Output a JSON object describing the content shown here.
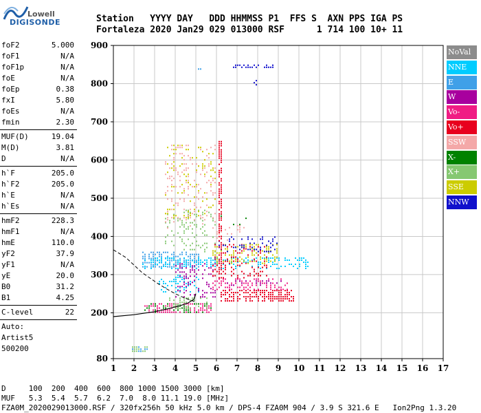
{
  "logo": {
    "line1": "Lowell",
    "line2": "DIGISONDE"
  },
  "header": {
    "line1": "Station   YYYY DAY   DDD HHMMSS P1  FFS S  AXN PPS IGA PS",
    "line2": "Fortaleza 2020 Jan29 029 013000 RSF      1 714 100 10+ 11"
  },
  "params": {
    "group1": [
      {
        "k": "foF2",
        "v": "5.000"
      },
      {
        "k": "foF1",
        "v": "N/A"
      },
      {
        "k": "foF1p",
        "v": "N/A"
      },
      {
        "k": "foE",
        "v": "N/A"
      },
      {
        "k": "foEp",
        "v": "0.38"
      },
      {
        "k": "fxI",
        "v": "5.80"
      },
      {
        "k": "foEs",
        "v": "N/A"
      },
      {
        "k": "fmin",
        "v": "2.30"
      }
    ],
    "group2": [
      {
        "k": "MUF(D)",
        "v": "19.04"
      },
      {
        "k": "M(D)",
        "v": "3.81"
      },
      {
        "k": "D",
        "v": "N/A"
      }
    ],
    "group3": [
      {
        "k": "h`F",
        "v": "205.0"
      },
      {
        "k": "h`F2",
        "v": "205.0"
      },
      {
        "k": "h`E",
        "v": "N/A"
      },
      {
        "k": "h`Es",
        "v": "N/A"
      }
    ],
    "group4": [
      {
        "k": "hmF2",
        "v": "228.3"
      },
      {
        "k": "hmF1",
        "v": "N/A"
      },
      {
        "k": "hmE",
        "v": "110.0"
      },
      {
        "k": "yF2",
        "v": "37.9"
      },
      {
        "k": "yF1",
        "v": "N/A"
      },
      {
        "k": "yE",
        "v": "20.0"
      },
      {
        "k": "B0",
        "v": "31.2"
      },
      {
        "k": "B1",
        "v": "4.25"
      }
    ],
    "group5": [
      {
        "k": "C-level",
        "v": "22"
      }
    ],
    "auto": [
      "Auto:",
      "Artist5",
      "500200"
    ]
  },
  "legend": [
    {
      "label": "NoVal",
      "color": "#8c8c8c"
    },
    {
      "label": "NNE",
      "color": "#00ccff"
    },
    {
      "label": "E",
      "color": "#3fa0e8"
    },
    {
      "label": "W",
      "color": "#a8009e"
    },
    {
      "label": "Vo-",
      "color": "#f01c84"
    },
    {
      "label": "Vo+",
      "color": "#e8001e"
    },
    {
      "label": "SSW",
      "color": "#f4a8a8"
    },
    {
      "label": "X-",
      "color": "#008200"
    },
    {
      "label": "X+",
      "color": "#86c872"
    },
    {
      "label": "SSE",
      "color": "#cccc00"
    },
    {
      "label": "NNW",
      "color": "#1010cc"
    }
  ],
  "footer": {
    "line1": "D     100  200  400  600  800 1000 1500 3000 [km]",
    "line2": "MUF   5.3  5.4  5.7  6.2  7.0  8.0 11.1 19.0 [MHz]",
    "line3": "FZA0M_2020029013000.RSF / 320fx256h 50 kHz 5.0 km / DPS-4 FZA0M 904 / 3.9 S 321.6 E   Ion2Png 1.3.20"
  },
  "chart_data": {
    "type": "scatter",
    "xlim": [
      1,
      17
    ],
    "ylim": [
      80,
      900
    ],
    "x_ticks": [
      1,
      2,
      3,
      4,
      5,
      6,
      7,
      8,
      9,
      10,
      11,
      12,
      13,
      14,
      15,
      16,
      17
    ],
    "y_ticks": [
      80,
      200,
      300,
      400,
      500,
      600,
      700,
      800,
      900
    ],
    "grid": true,
    "legend_position": "right",
    "xlabel": "",
    "ylabel": "",
    "clusters": [
      {
        "x": [
          2.5,
          5.8
        ],
        "y": [
          200,
          225
        ],
        "color": "#f01c84",
        "density": 0.85
      },
      {
        "x": [
          2.5,
          5.8
        ],
        "y": [
          200,
          225
        ],
        "color": "#008200",
        "density": 0.4
      },
      {
        "x": [
          3.6,
          5.6
        ],
        "y": [
          210,
          240
        ],
        "color": "#86c872",
        "density": 0.5
      },
      {
        "x": [
          2.4,
          5.2
        ],
        "y": [
          320,
          360
        ],
        "color": "#3fa0e8",
        "density": 0.8
      },
      {
        "x": [
          2.4,
          10.5
        ],
        "y": [
          315,
          345
        ],
        "color": "#00ccff",
        "density": 0.5
      },
      {
        "x": [
          3.2,
          5.2
        ],
        "y": [
          255,
          300
        ],
        "color": "#00ccff",
        "density": 0.35
      },
      {
        "x": [
          3.5,
          6
        ],
        "y": [
          360,
          470
        ],
        "color": "#86c872",
        "density": 0.25
      },
      {
        "x": [
          3.5,
          6
        ],
        "y": [
          420,
          640
        ],
        "color": "#f4a8a8",
        "density": 0.2
      },
      {
        "x": [
          3.5,
          6
        ],
        "y": [
          450,
          640
        ],
        "color": "#cccc00",
        "density": 0.15
      },
      {
        "x": [
          4,
          6
        ],
        "y": [
          240,
          330
        ],
        "color": "#a8009e",
        "density": 0.3
      },
      {
        "x": [
          6.2,
          9.8
        ],
        "y": [
          230,
          260
        ],
        "color": "#e8001e",
        "density": 0.85
      },
      {
        "x": [
          5.8,
          9.5
        ],
        "y": [
          260,
          290
        ],
        "color": "#f01c84",
        "density": 0.55
      },
      {
        "x": [
          5.8,
          8.5
        ],
        "y": [
          290,
          380
        ],
        "color": "#e8001e",
        "density": 0.35
      },
      {
        "x": [
          5.8,
          9
        ],
        "y": [
          330,
          380
        ],
        "color": "#cccc00",
        "density": 0.35
      },
      {
        "x": [
          6,
          9
        ],
        "y": [
          360,
          400
        ],
        "color": "#1010cc",
        "density": 0.25
      },
      {
        "x": [
          6.5,
          9.2
        ],
        "y": [
          270,
          285
        ],
        "color": "#a8009e",
        "density": 0.4
      },
      {
        "x": [
          6,
          7.5
        ],
        "y": [
          390,
          430
        ],
        "color": "#f4a8a8",
        "density": 0.3
      },
      {
        "x": [
          6.2,
          7.5
        ],
        "y": [
          430,
          460
        ],
        "color": "#008200",
        "density": 0.2
      },
      {
        "x": [
          6.8,
          8.8
        ],
        "y": [
          840,
          850
        ],
        "color": "#1010cc",
        "density": 0.9
      },
      {
        "x": [
          7.8,
          8
        ],
        "y": [
          795,
          815
        ],
        "color": "#1010cc",
        "density": 0.7
      },
      {
        "x": [
          1.9,
          2.7
        ],
        "y": [
          100,
          112
        ],
        "color": "#86c872",
        "density": 0.8
      },
      {
        "x": [
          1.9,
          2.7
        ],
        "y": [
          100,
          112
        ],
        "color": "#3fa0e8",
        "density": 0.4
      },
      {
        "x": [
          5.1,
          5.7
        ],
        "y": [
          835,
          840
        ],
        "color": "#3fa0e8",
        "density": 0.5
      },
      {
        "x": [
          6.1,
          6.3
        ],
        "y": [
          300,
          650
        ],
        "color": "#e8001e",
        "density": 0.9
      }
    ],
    "dashed_curve": [
      [
        1,
        365
      ],
      [
        1.6,
        345
      ],
      [
        2,
        325
      ],
      [
        2.4,
        305
      ],
      [
        2.8,
        290
      ],
      [
        3.2,
        275
      ],
      [
        3.6,
        262
      ],
      [
        4,
        250
      ],
      [
        4.4,
        240
      ],
      [
        4.8,
        232
      ],
      [
        5,
        228
      ]
    ],
    "solid_curve": [
      [
        1,
        190
      ],
      [
        2,
        195
      ],
      [
        3,
        203
      ],
      [
        3.6,
        210
      ],
      [
        4.2,
        218
      ],
      [
        4.6,
        225
      ],
      [
        4.9,
        235
      ],
      [
        5.0,
        250
      ]
    ]
  }
}
